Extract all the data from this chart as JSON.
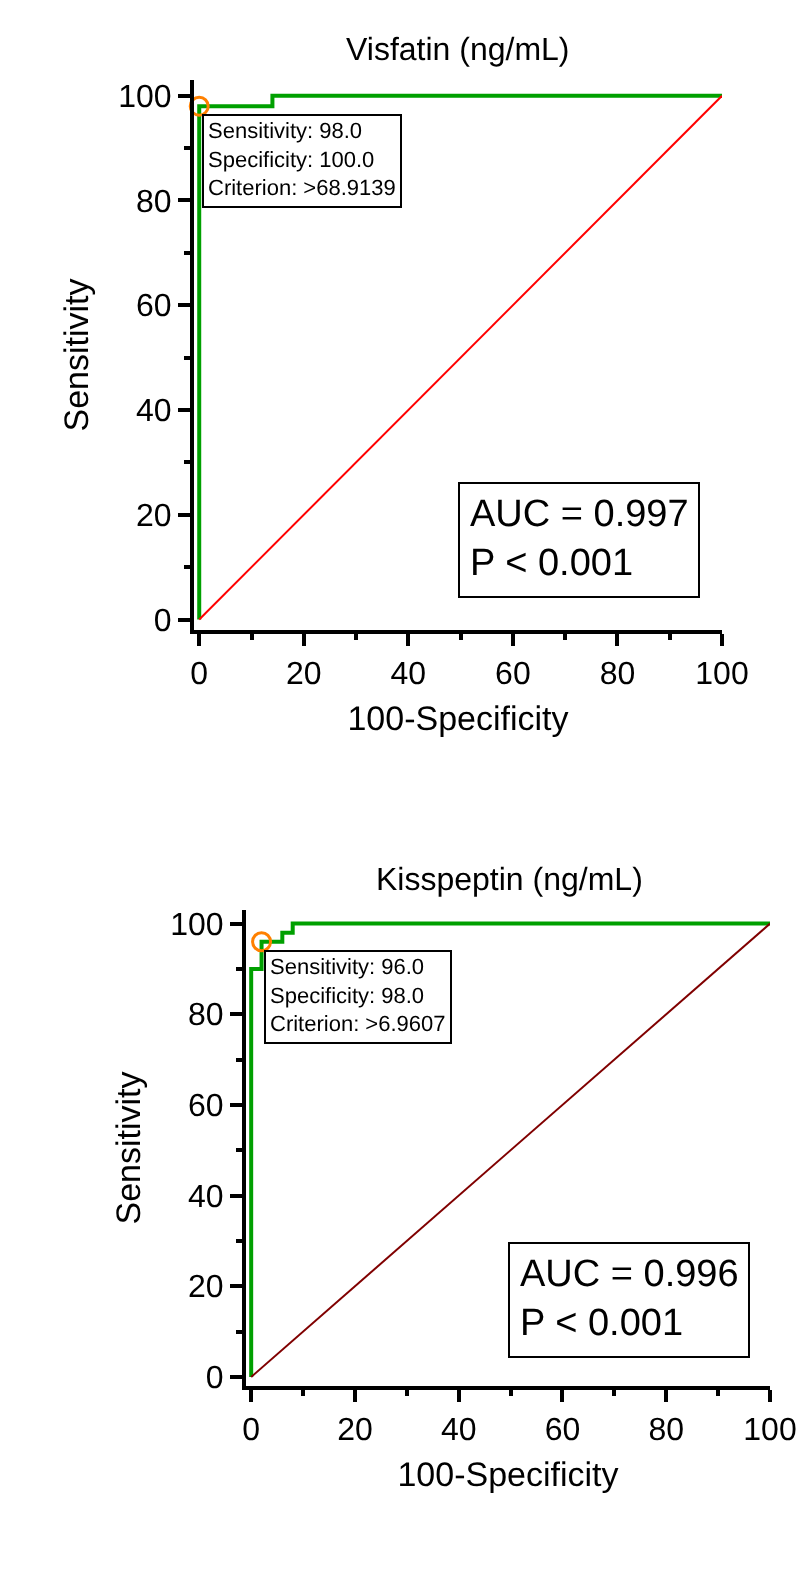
{
  "chart_data": [
    {
      "type": "line",
      "title": "Visfatin (ng/mL)",
      "xlabel": "100-Specificity",
      "ylabel": "Sensitivity",
      "series": [
        {
          "color": "#00a000",
          "x": [
            0,
            0,
            14,
            14,
            100
          ],
          "values": [
            0,
            98,
            98,
            100,
            100
          ]
        },
        {
          "color": "#ff0000",
          "x": [
            0,
            100
          ],
          "values": [
            0,
            100
          ]
        },
        {
          "type": "scatter",
          "color": "#ff8000",
          "marker": "circle",
          "x": [
            0
          ],
          "values": [
            98
          ]
        }
      ],
      "annotations": [
        {
          "text": "Sensitivity: 98.0\nSpecificity: 100.0\nCriterion: >68.9139",
          "x": 0,
          "y": 98
        },
        "AUC = 0.997\nP < 0.001"
      ],
      "xlim": [
        -1,
        100
      ],
      "ylim": [
        -2,
        103
      ],
      "xticks": [
        0,
        20,
        40,
        60,
        80,
        100
      ],
      "yticks": [
        0,
        20,
        40,
        60,
        80,
        100
      ],
      "grid": false
    },
    {
      "type": "line",
      "title": "Kisspeptin (ng/mL)",
      "xlabel": "100-Specificity",
      "ylabel": "Sensitivity",
      "series": [
        {
          "color": "#00a000",
          "x": [
            0,
            0,
            2,
            2,
            6,
            6,
            8,
            8,
            100
          ],
          "values": [
            0,
            90,
            90,
            96,
            96,
            98,
            98,
            100,
            100
          ]
        },
        {
          "color": "#800000",
          "x": [
            0,
            100
          ],
          "values": [
            0,
            100
          ]
        },
        {
          "type": "scatter",
          "color": "#ff8000",
          "marker": "circle",
          "x": [
            2
          ],
          "values": [
            96
          ]
        }
      ],
      "annotations": [
        {
          "text": "Sensitivity: 96.0\nSpecificity: 98.0\nCriterion: >6.9607",
          "x": 2,
          "y": 96
        },
        "AUC = 0.996\nP < 0.001"
      ],
      "xlim": [
        -1,
        100
      ],
      "ylim": [
        -2,
        103
      ],
      "xticks": [
        0,
        20,
        40,
        60,
        80,
        100
      ],
      "yticks": [
        0,
        20,
        40,
        60,
        80,
        100
      ],
      "grid": false
    }
  ]
}
